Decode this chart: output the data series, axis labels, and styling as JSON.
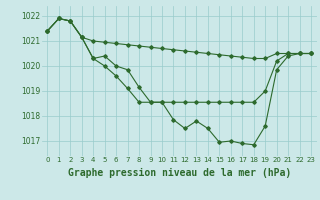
{
  "background_color": "#cce8e8",
  "grid_color": "#99cccc",
  "line_color": "#2d6a2d",
  "marker": "D",
  "markersize": 1.8,
  "linewidth": 0.8,
  "title": "Graphe pression niveau de la mer (hPa)",
  "title_fontsize": 7.0,
  "xlim": [
    -0.5,
    23.5
  ],
  "ylim": [
    1016.4,
    1022.4
  ],
  "yticks": [
    1017,
    1018,
    1019,
    1020,
    1021,
    1022
  ],
  "xticks": [
    0,
    1,
    2,
    3,
    4,
    5,
    6,
    7,
    8,
    9,
    10,
    11,
    12,
    13,
    14,
    15,
    16,
    17,
    18,
    19,
    20,
    21,
    22,
    23
  ],
  "series": [
    [
      1021.4,
      1021.9,
      1021.8,
      1021.15,
      1021.0,
      1020.95,
      1020.9,
      1020.85,
      1020.8,
      1020.75,
      1020.7,
      1020.65,
      1020.6,
      1020.55,
      1020.5,
      1020.45,
      1020.4,
      1020.35,
      1020.3,
      1020.3,
      1020.5,
      1020.5,
      1020.5,
      1020.5
    ],
    [
      1021.4,
      1021.9,
      1021.8,
      1021.15,
      1020.3,
      1020.4,
      1020.0,
      1019.85,
      1019.15,
      1018.55,
      1018.55,
      1017.85,
      1017.5,
      1017.8,
      1017.5,
      1016.95,
      1017.0,
      1016.9,
      1016.85,
      1017.6,
      1019.85,
      1020.4,
      1020.5,
      1020.5
    ],
    [
      1021.4,
      1021.9,
      1021.8,
      1021.15,
      1020.3,
      1020.0,
      1019.6,
      1019.1,
      1018.55,
      1018.55,
      1018.55,
      1018.55,
      1018.55,
      1018.55,
      1018.55,
      1018.55,
      1018.55,
      1018.55,
      1018.55,
      1019.0,
      1020.2,
      1020.5,
      1020.5,
      1020.5
    ]
  ]
}
